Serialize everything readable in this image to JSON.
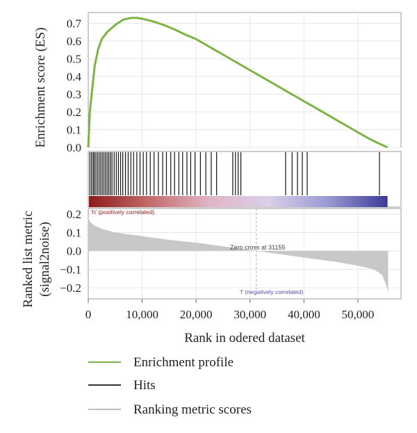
{
  "chart_data": {
    "type": "line",
    "xlabel": "Rank in odered dataset",
    "xlim": [
      0,
      58000
    ],
    "x_ticks": [
      0,
      10000,
      20000,
      30000,
      40000,
      50000
    ],
    "x_tick_labels": [
      "0",
      "10,000",
      "20,000",
      "30,000",
      "40,000",
      "50,000"
    ],
    "enrichment": {
      "ylabel": "Enrichment score (ES)",
      "ylim": [
        0,
        0.76
      ],
      "y_ticks": [
        0.0,
        0.1,
        0.2,
        0.3,
        0.4,
        0.5,
        0.6,
        0.7
      ],
      "y_tick_labels": [
        "0.0",
        "0.1",
        "0.2",
        "0.3",
        "0.4",
        "0.5",
        "0.6",
        "0.7"
      ],
      "x": [
        0,
        300,
        700,
        1200,
        1800,
        2500,
        3500,
        5000,
        6500,
        8000,
        9000,
        10000,
        12000,
        14000,
        16000,
        18000,
        20000,
        24000,
        28000,
        32000,
        36000,
        40000,
        44000,
        48000,
        52000,
        54000,
        55500
      ],
      "y": [
        0.0,
        0.2,
        0.32,
        0.46,
        0.55,
        0.61,
        0.65,
        0.69,
        0.72,
        0.73,
        0.73,
        0.725,
        0.71,
        0.69,
        0.665,
        0.635,
        0.61,
        0.54,
        0.47,
        0.4,
        0.33,
        0.26,
        0.19,
        0.12,
        0.05,
        0.02,
        0.0
      ]
    },
    "hits": {
      "positions": [
        300,
        600,
        900,
        1100,
        1400,
        1700,
        2000,
        2300,
        2600,
        2900,
        3200,
        3500,
        3800,
        4100,
        4400,
        4800,
        5200,
        5600,
        6000,
        6400,
        6900,
        7400,
        7900,
        8400,
        9000,
        9600,
        10200,
        10800,
        11500,
        12200,
        13000,
        13800,
        14500,
        15300,
        16000,
        16800,
        17500,
        18300,
        19000,
        19800,
        20800,
        21800,
        22800,
        23800,
        26800,
        27300,
        27800,
        28300,
        36600,
        37800,
        38800,
        39700,
        40600,
        54000
      ]
    },
    "gradient_labels": {
      "positive": "'h' (positively correlated)",
      "negative": "'l' (negatively correlated)",
      "zero_cross": "Zero cross at 31155",
      "zero_cross_x": 31155
    },
    "ranked_metric": {
      "ylabel_line1": "Ranked list metric",
      "ylabel_line2": "(signal2noise)",
      "ylim": [
        -0.26,
        0.23
      ],
      "y_ticks": [
        0.2,
        0.1,
        0.0,
        -0.1,
        -0.2
      ],
      "y_tick_labels": [
        "0.2",
        "0.1",
        "0.0",
        "−0.1",
        "−0.2"
      ],
      "x": [
        0,
        300,
        1000,
        2500,
        5000,
        10000,
        15000,
        20000,
        25000,
        31155,
        36000,
        41000,
        46000,
        50000,
        53000,
        54500,
        55300,
        55600
      ],
      "y": [
        0.18,
        0.16,
        0.14,
        0.12,
        0.1,
        0.08,
        0.06,
        0.045,
        0.025,
        0.0,
        -0.02,
        -0.04,
        -0.06,
        -0.08,
        -0.1,
        -0.13,
        -0.19,
        -0.23
      ]
    },
    "legend": {
      "placement": "bottom",
      "entries": [
        {
          "label": "Enrichment profile",
          "color": "#7cb342"
        },
        {
          "label": "Hits",
          "color": "#333333"
        },
        {
          "label": "Ranking metric scores",
          "color": "#bdbdbd"
        }
      ]
    },
    "colors": {
      "es_line": "#7cb342",
      "hit": "#111111",
      "metric_fill": "#c8c8c8",
      "grid": "#e6e6e6",
      "frame": "#888888",
      "gradient": [
        "#8e1a1a",
        "#c26a6a",
        "#e0b4c4",
        "#d9d0ea",
        "#9a9ad2",
        "#3a3a96"
      ]
    }
  }
}
